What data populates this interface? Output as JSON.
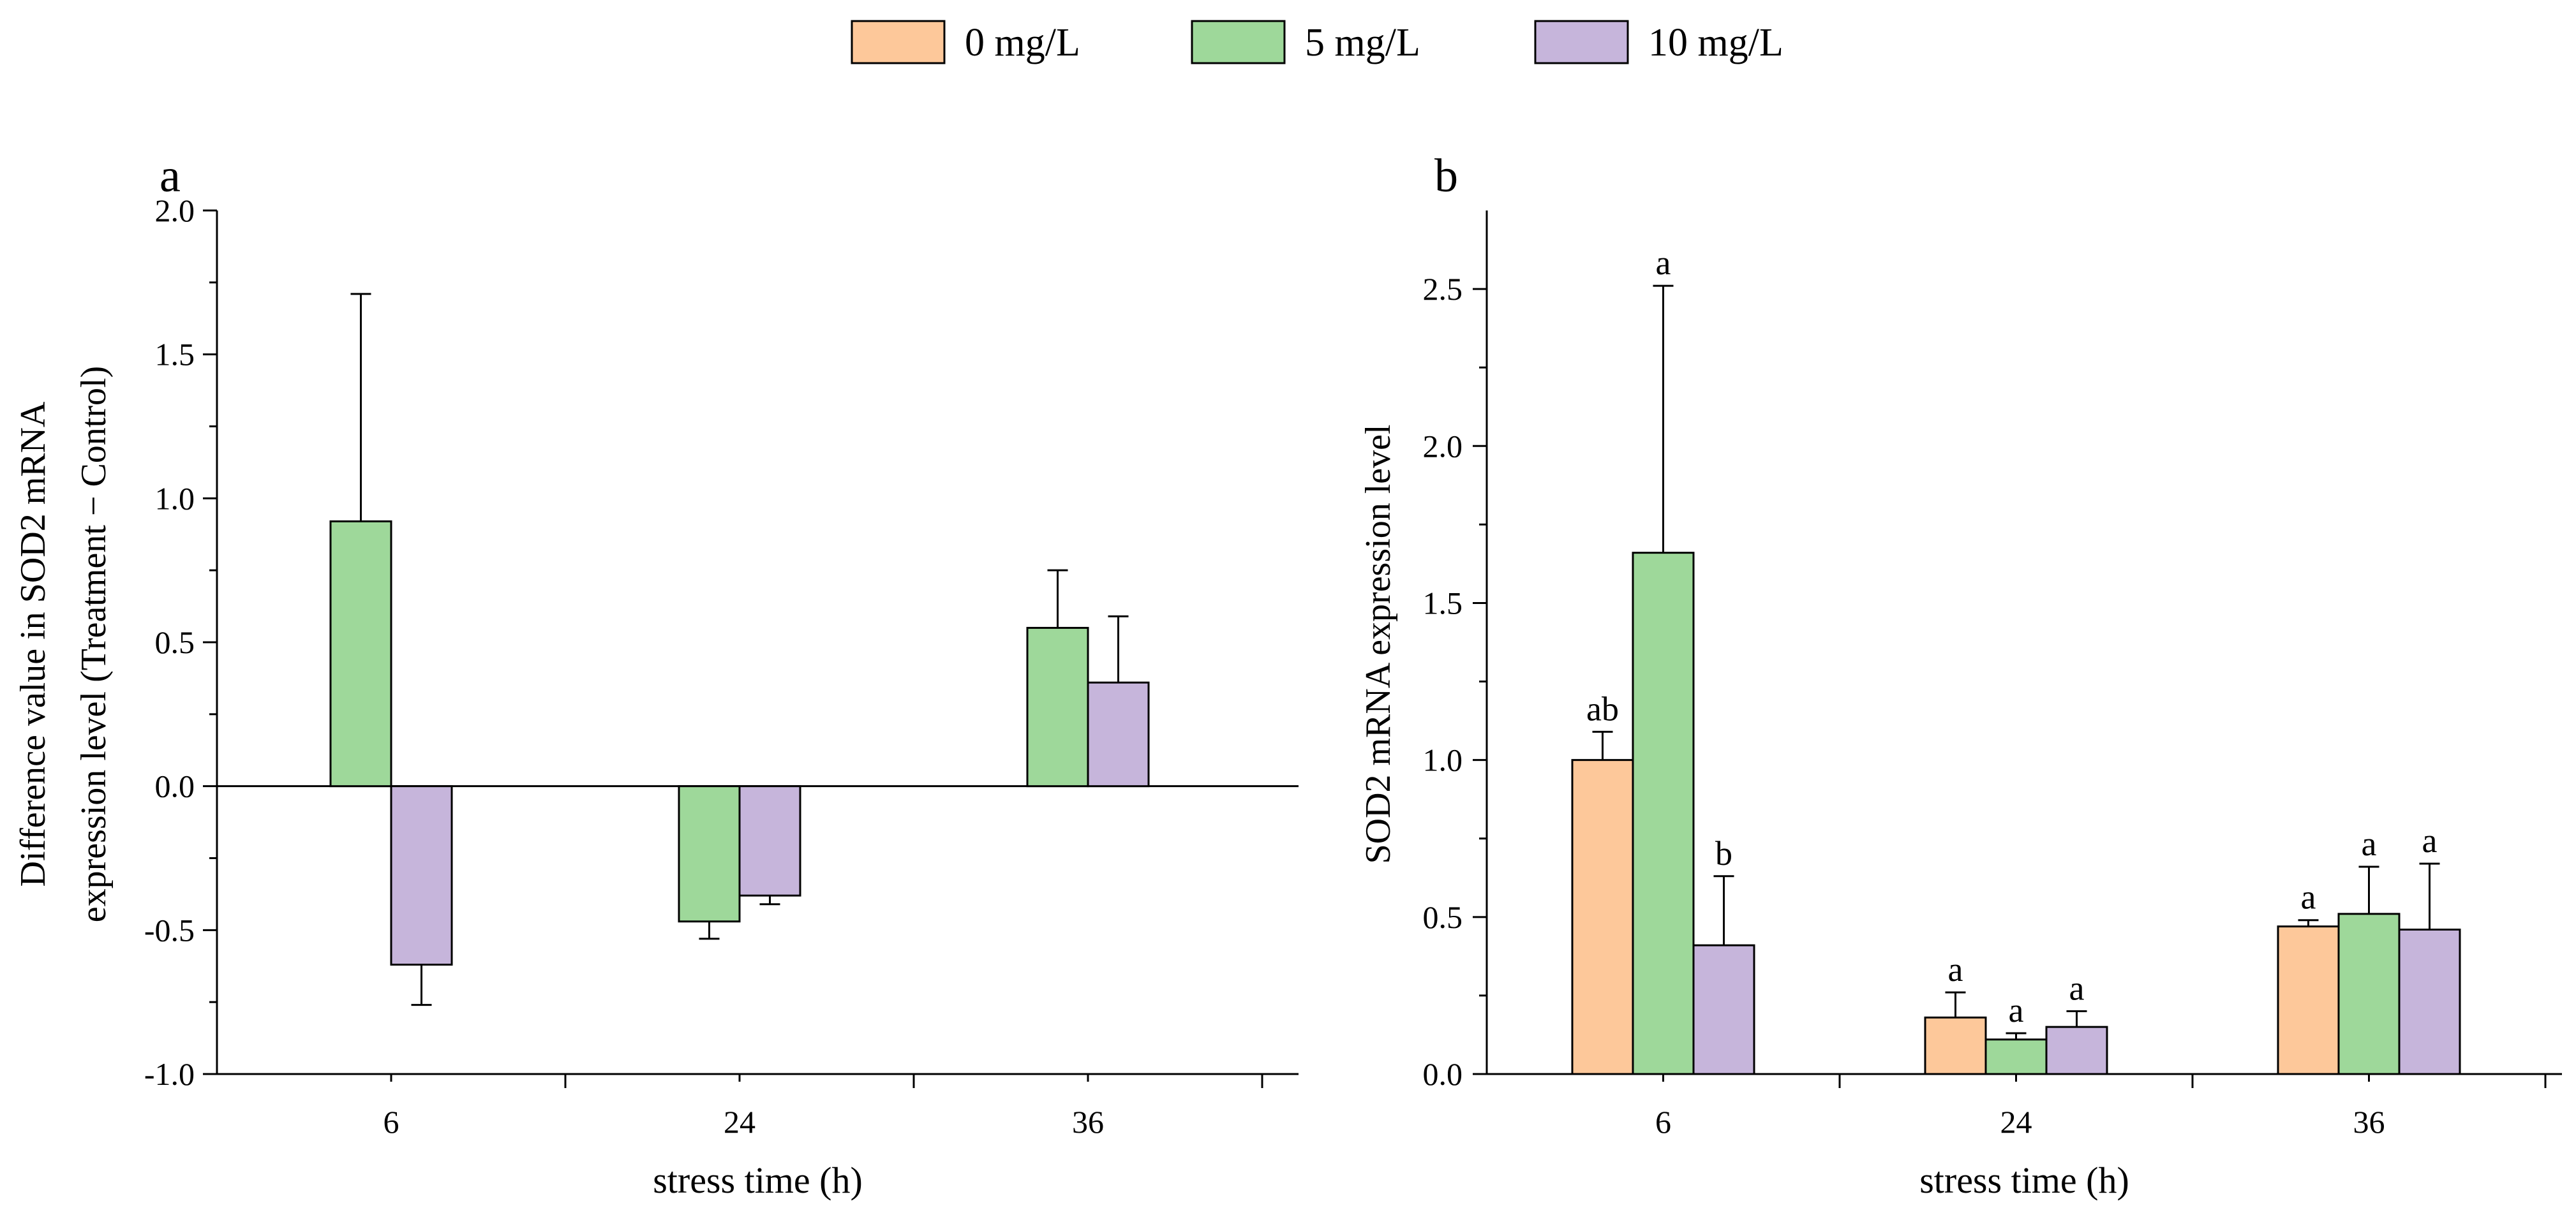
{
  "legend": [
    {
      "label": "0 mg/L",
      "color": "#FDC89A"
    },
    {
      "label": "5 mg/L",
      "color": "#9ED89A"
    },
    {
      "label": "10 mg/L",
      "color": "#C6B5DB"
    }
  ],
  "chart_data": [
    {
      "type": "bar",
      "panel_label": "a",
      "xlabel": "stress time (h)",
      "ylabel": [
        "Difference value in SOD2 mRNA",
        "expression level (Treatment − Control)"
      ],
      "categories": [
        "6",
        "24",
        "36"
      ],
      "ylim": [
        -1.0,
        2.0
      ],
      "yticks": [
        -1.0,
        -0.5,
        0.0,
        0.5,
        1.0,
        1.5,
        2.0
      ],
      "ytick_labels": [
        "-1.0",
        "-0.5",
        "0.0",
        "0.5",
        "1.0",
        "1.5",
        "2.0"
      ],
      "zero_line": true,
      "series": [
        {
          "name": "5 mg/L",
          "color": "#9ED89A",
          "values": [
            0.92,
            -0.47,
            0.55
          ],
          "errors": [
            0.79,
            0.06,
            0.2
          ]
        },
        {
          "name": "10 mg/L",
          "color": "#C6B5DB",
          "values": [
            -0.62,
            -0.38,
            0.36
          ],
          "errors": [
            0.14,
            0.03,
            0.23
          ]
        }
      ]
    },
    {
      "type": "bar",
      "panel_label": "b",
      "xlabel": "stress time (h)",
      "ylabel": [
        "SOD2 mRNA expression level"
      ],
      "categories": [
        "6",
        "24",
        "36"
      ],
      "ylim": [
        0.0,
        2.75
      ],
      "yticks": [
        0.0,
        0.5,
        1.0,
        1.5,
        2.0,
        2.5
      ],
      "ytick_labels": [
        "0.0",
        "0.5",
        "1.0",
        "1.5",
        "2.0",
        "2.5"
      ],
      "zero_line": false,
      "series": [
        {
          "name": "0 mg/L",
          "color": "#FDC89A",
          "values": [
            1.0,
            0.18,
            0.47
          ],
          "errors": [
            0.09,
            0.08,
            0.02
          ],
          "labels": [
            "ab",
            "a",
            "a"
          ]
        },
        {
          "name": "5 mg/L",
          "color": "#9ED89A",
          "values": [
            1.66,
            0.11,
            0.51
          ],
          "errors": [
            0.85,
            0.02,
            0.15
          ],
          "labels": [
            "a",
            "a",
            "a"
          ]
        },
        {
          "name": "10 mg/L",
          "color": "#C6B5DB",
          "values": [
            0.41,
            0.15,
            0.46
          ],
          "errors": [
            0.22,
            0.05,
            0.21
          ],
          "labels": [
            "b",
            "a",
            "a"
          ]
        }
      ]
    }
  ]
}
